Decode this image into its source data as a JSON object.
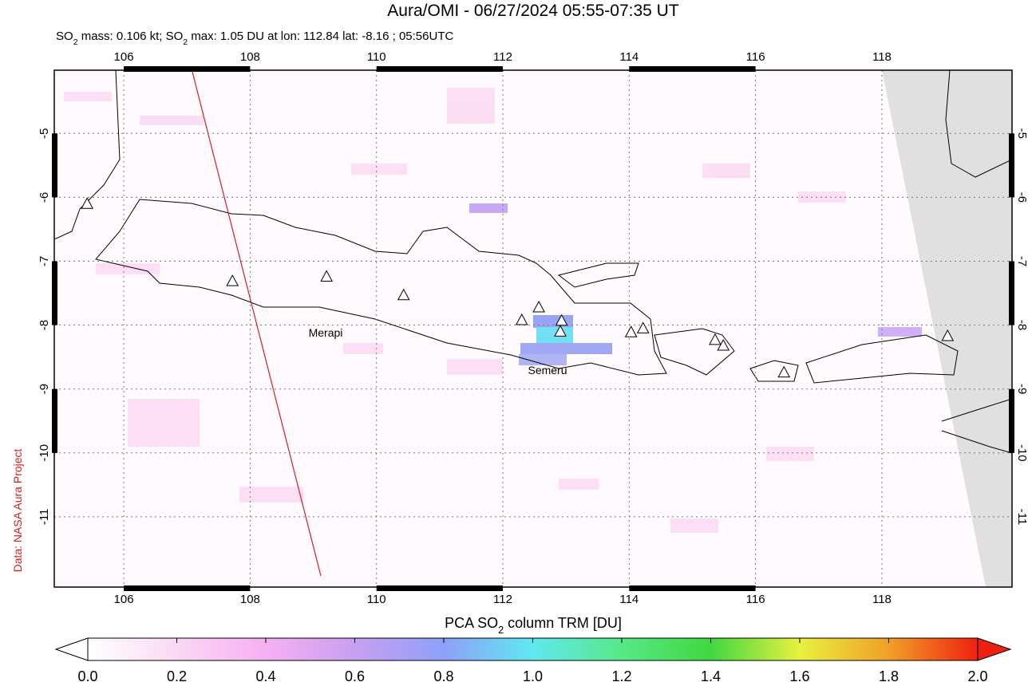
{
  "title": "Aura/OMI - 06/27/2024 05:55-07:35 UT",
  "subtitle": [
    "SO",
    "2",
    " mass: 0.106 kt; SO",
    "2",
    " max: 1.05 DU at lon: 112.84 lat: -8.16 ; 05:56UTC"
  ],
  "credit": "Data: NASA Aura Project",
  "map": {
    "xlim": [
      104.9,
      120.06
    ],
    "ylim": [
      -12.1,
      -4.01
    ],
    "xticks": [
      106,
      108,
      110,
      112,
      114,
      116,
      118
    ],
    "yticks": [
      -5,
      -6,
      -7,
      -8,
      -9,
      -10,
      -11
    ],
    "labels": [
      "Merapi",
      "Semeru"
    ],
    "volcanoes": [
      {
        "lon": 105.42,
        "lat": -6.11
      },
      {
        "lon": 107.72,
        "lat": -7.32
      },
      {
        "lon": 109.21,
        "lat": -7.25
      },
      {
        "lon": 110.43,
        "lat": -7.54
      },
      {
        "lon": 112.3,
        "lat": -7.93
      },
      {
        "lon": 112.57,
        "lat": -7.73
      },
      {
        "lon": 112.93,
        "lat": -7.94
      },
      {
        "lon": 112.91,
        "lat": -8.11
      },
      {
        "lon": 114.03,
        "lat": -8.12
      },
      {
        "lon": 114.22,
        "lat": -8.06
      },
      {
        "lon": 115.36,
        "lat": -8.24
      },
      {
        "lon": 115.49,
        "lat": -8.33
      },
      {
        "lon": 116.45,
        "lat": -8.75
      },
      {
        "lon": 119.04,
        "lat": -8.18
      }
    ]
  },
  "colorbar": {
    "label": [
      "PCA SO",
      "2",
      " column TRM [DU]"
    ],
    "lim": [
      0,
      2
    ],
    "ticks": [
      {
        "value": 0,
        "label": "0.0"
      },
      {
        "value": 0.2,
        "label": "0.2"
      },
      {
        "value": 0.4,
        "label": "0.4"
      },
      {
        "value": 0.6,
        "label": "0.6"
      },
      {
        "value": 0.8,
        "label": "0.8"
      },
      {
        "value": 1,
        "label": "1.0"
      },
      {
        "value": 1.2,
        "label": "1.2"
      },
      {
        "value": 1.4,
        "label": "1.4"
      },
      {
        "value": 1.6,
        "label": "1.6"
      },
      {
        "value": 1.8,
        "label": "1.8"
      },
      {
        "value": 2,
        "label": "2.0"
      }
    ]
  }
}
